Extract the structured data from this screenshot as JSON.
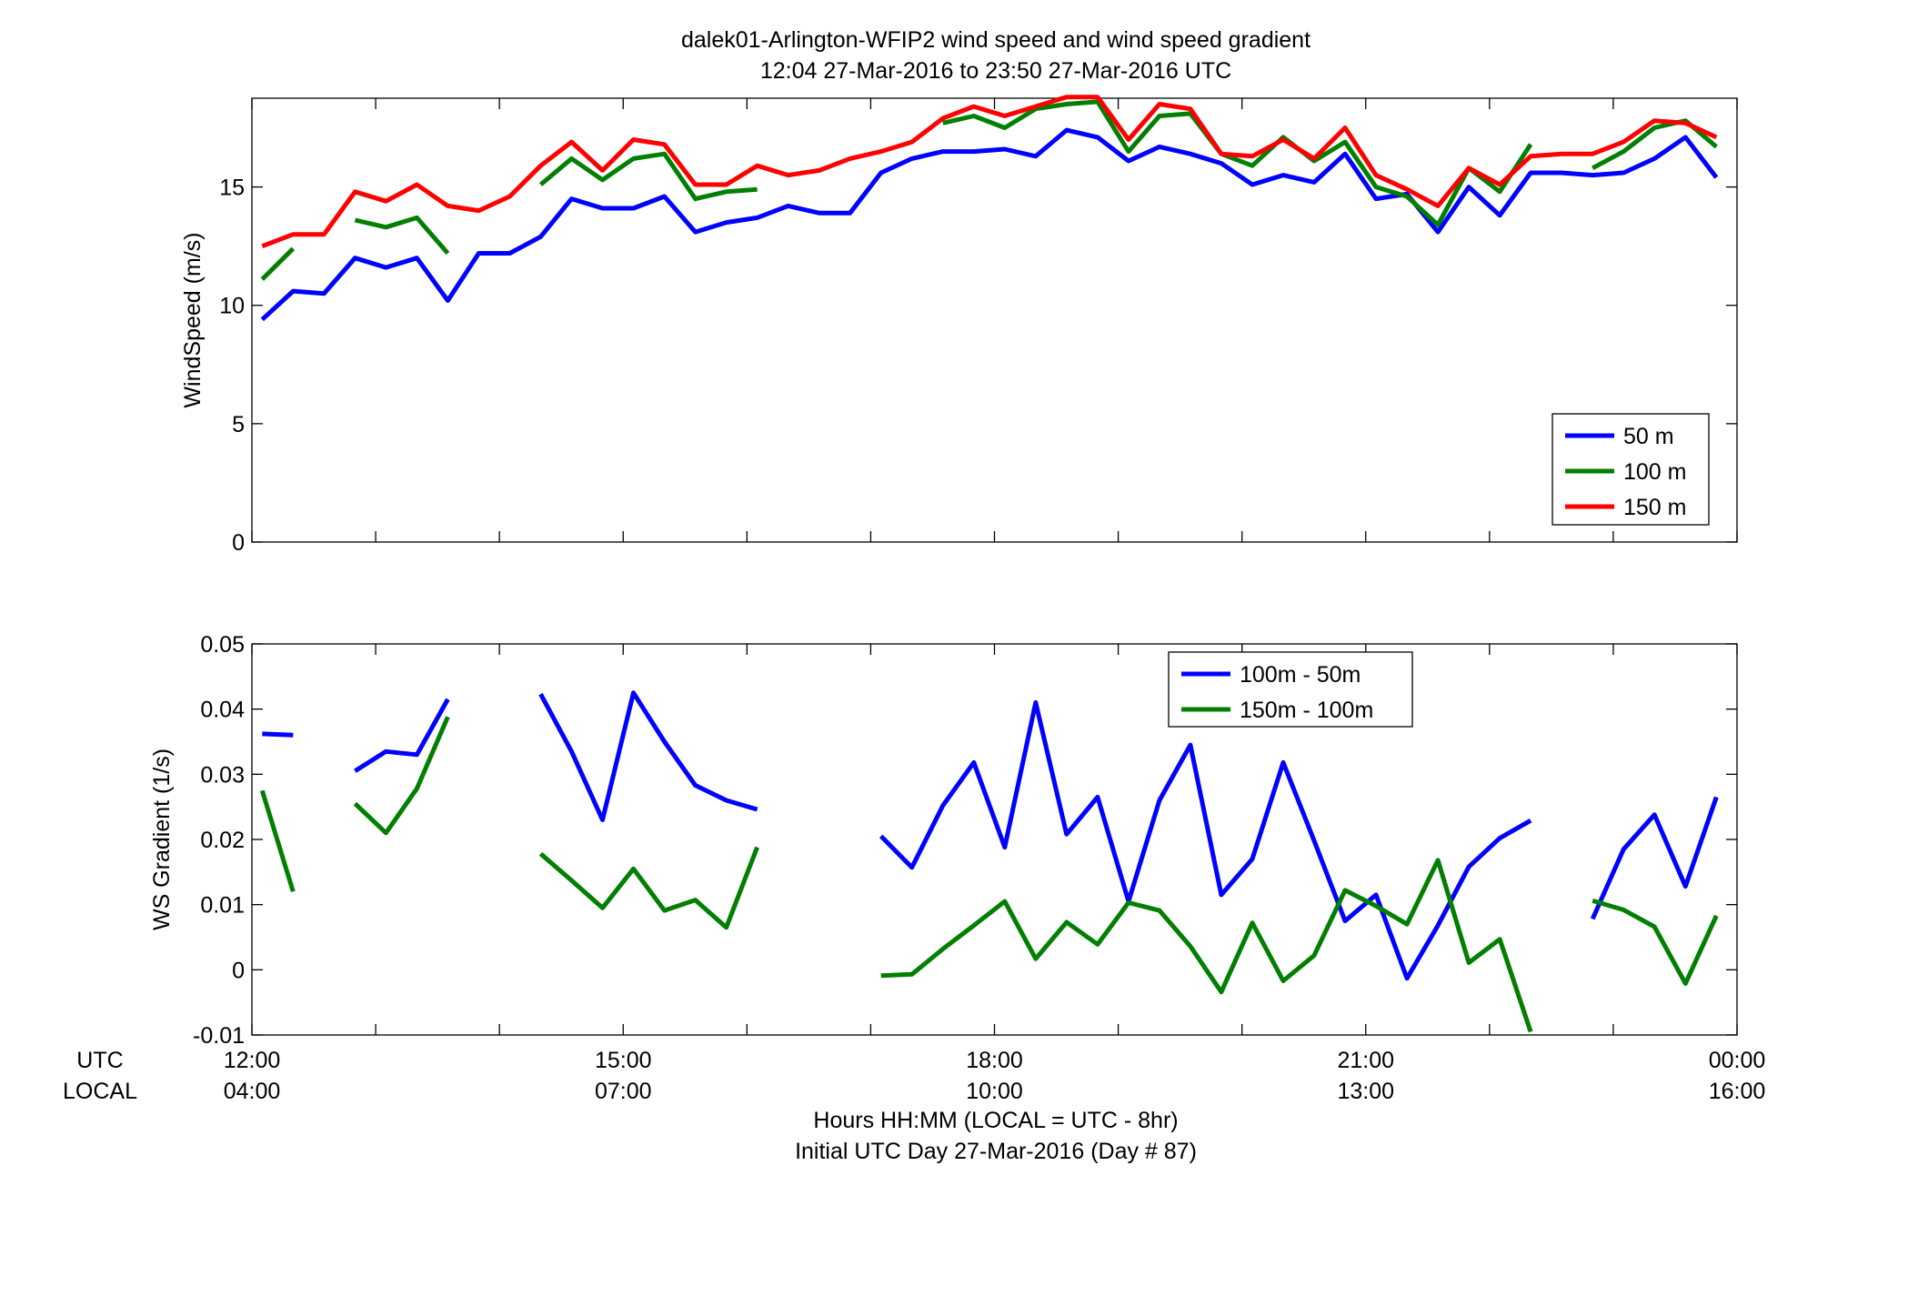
{
  "figure": {
    "title_line1": "dalek01-Arlington-WFIP2  wind speed and wind speed gradient",
    "title_line2": "12:04 27-Mar-2016 to 23:50 27-Mar-2016  UTC",
    "xlabel_line1": "Hours HH:MM  (LOCAL = UTC - 8hr)",
    "xlabel_line2": "Initial UTC Day 27-Mar-2016 (Day # 87)",
    "row_label_utc": "UTC",
    "row_label_local": "LOCAL"
  },
  "colors": {
    "blue": "#0000ff",
    "green": "#007f00",
    "red": "#ff0000"
  },
  "chart_data": [
    {
      "type": "line",
      "ylabel": "WindSpeed (m/s)",
      "xlim": [
        12.0,
        24.0
      ],
      "ylim": [
        0,
        18.75
      ],
      "yticks": [
        0,
        5,
        10,
        15
      ],
      "grid": false,
      "legend_position": "bottom-right",
      "x_utc_labels": [
        "12:00",
        "15:00",
        "18:00",
        "21:00",
        "00:00"
      ],
      "x_local_labels": [
        "04:00",
        "07:00",
        "10:00",
        "13:00",
        "16:00"
      ],
      "series": [
        {
          "name": "50 m",
          "color": "#0000ff",
          "x": [
            12.083,
            12.333,
            12.583,
            12.833,
            13.083,
            13.333,
            13.583,
            13.833,
            14.083,
            14.333,
            14.583,
            14.833,
            15.083,
            15.333,
            15.583,
            15.833,
            16.083,
            16.333,
            16.583,
            16.833,
            17.083,
            17.333,
            17.583,
            17.833,
            18.083,
            18.333,
            18.583,
            18.833,
            19.083,
            19.333,
            19.583,
            19.833,
            20.083,
            20.333,
            20.583,
            20.833,
            21.083,
            21.333,
            21.583,
            21.833,
            22.083,
            22.333,
            22.583,
            22.833,
            23.083,
            23.333,
            23.583,
            23.833
          ],
          "y": [
            9.4,
            10.6,
            10.5,
            12.0,
            11.6,
            12.0,
            10.2,
            12.2,
            12.2,
            12.9,
            14.5,
            14.1,
            14.1,
            14.6,
            13.1,
            13.5,
            13.7,
            14.2,
            13.9,
            13.9,
            15.6,
            16.2,
            16.5,
            16.5,
            16.6,
            16.3,
            17.4,
            17.1,
            16.1,
            16.7,
            16.4,
            16.0,
            15.1,
            15.5,
            15.2,
            16.4,
            14.5,
            14.7,
            13.1,
            15.0,
            13.8,
            15.6,
            15.6,
            15.5,
            15.6,
            16.2,
            17.1,
            15.4
          ]
        },
        {
          "name": "100 m",
          "color": "#007f00",
          "x": [
            12.083,
            12.333,
            12.583,
            12.833,
            13.083,
            13.333,
            13.583,
            13.833,
            14.083,
            14.333,
            14.583,
            14.833,
            15.083,
            15.333,
            15.583,
            15.833,
            16.083,
            16.333,
            16.583,
            16.833,
            17.083,
            17.333,
            17.583,
            17.833,
            18.083,
            18.333,
            18.583,
            18.833,
            19.083,
            19.333,
            19.583,
            19.833,
            20.083,
            20.333,
            20.583,
            20.833,
            21.083,
            21.333,
            21.583,
            21.833,
            22.083,
            22.333,
            22.583,
            22.833,
            23.083,
            23.333,
            23.583,
            23.833
          ],
          "y": [
            11.1,
            12.4,
            null,
            13.6,
            13.3,
            13.7,
            12.2,
            null,
            null,
            15.1,
            16.2,
            15.3,
            16.2,
            16.4,
            14.5,
            14.8,
            14.9,
            null,
            null,
            null,
            null,
            null,
            17.7,
            18.0,
            17.5,
            18.3,
            18.5,
            18.6,
            16.5,
            18.0,
            18.1,
            16.4,
            15.9,
            17.1,
            16.1,
            16.9,
            15.0,
            14.6,
            13.4,
            15.8,
            14.8,
            16.8,
            null,
            15.8,
            16.5,
            17.5,
            17.8,
            16.7
          ]
        },
        {
          "name": "150 m",
          "color": "#ff0000",
          "x": [
            12.083,
            12.333,
            12.583,
            12.833,
            13.083,
            13.333,
            13.583,
            13.833,
            14.083,
            14.333,
            14.583,
            14.833,
            15.083,
            15.333,
            15.583,
            15.833,
            16.083,
            16.333,
            16.583,
            16.833,
            17.083,
            17.333,
            17.583,
            17.833,
            18.083,
            18.333,
            18.583,
            18.833,
            19.083,
            19.333,
            19.583,
            19.833,
            20.083,
            20.333,
            20.583,
            20.833,
            21.083,
            21.333,
            21.583,
            21.833,
            22.083,
            22.333,
            22.583,
            22.833,
            23.083,
            23.333,
            23.583,
            23.833
          ],
          "y": [
            12.5,
            13.0,
            13.0,
            14.8,
            14.4,
            15.1,
            14.2,
            14.0,
            14.6,
            15.9,
            16.9,
            15.7,
            17.0,
            16.8,
            15.1,
            15.1,
            15.9,
            15.5,
            15.7,
            16.2,
            16.5,
            16.9,
            17.9,
            18.4,
            18.0,
            18.4,
            18.8,
            18.8,
            17.0,
            18.5,
            18.3,
            16.4,
            16.3,
            17.0,
            16.2,
            17.5,
            15.5,
            14.9,
            14.2,
            15.8,
            15.1,
            16.3,
            16.4,
            16.4,
            16.9,
            17.8,
            17.7,
            17.1
          ]
        }
      ]
    },
    {
      "type": "line",
      "ylabel": "WS Gradient (1/s)",
      "xlim": [
        12.0,
        24.0
      ],
      "ylim": [
        -0.01,
        0.05
      ],
      "yticks": [
        -0.01,
        0,
        0.01,
        0.02,
        0.03,
        0.04,
        0.05
      ],
      "ytick_labels": [
        "-0.01",
        "0",
        "0.01",
        "0.02",
        "0.03",
        "0.04",
        "0.05"
      ],
      "grid": false,
      "legend_position": "top-center",
      "x_utc_labels": [
        "12:00",
        "15:00",
        "18:00",
        "21:00",
        "00:00"
      ],
      "x_local_labels": [
        "04:00",
        "07:00",
        "10:00",
        "13:00",
        "16:00"
      ],
      "series": [
        {
          "name": "100m - 50m",
          "color": "#0000ff",
          "x": [
            12.083,
            12.333,
            12.583,
            12.833,
            13.083,
            13.333,
            13.583,
            13.833,
            14.083,
            14.333,
            14.583,
            14.833,
            15.083,
            15.333,
            15.583,
            15.833,
            16.083,
            16.333,
            16.583,
            16.833,
            17.083,
            17.333,
            17.583,
            17.833,
            18.083,
            18.333,
            18.583,
            18.833,
            19.083,
            19.333,
            19.583,
            19.833,
            20.083,
            20.333,
            20.583,
            20.833,
            21.083,
            21.333,
            21.583,
            21.833,
            22.083,
            22.333,
            22.583,
            22.833,
            23.083,
            23.333,
            23.583,
            23.833
          ],
          "y": [
            0.0362,
            0.036,
            null,
            0.0305,
            0.0335,
            0.033,
            0.0415,
            null,
            null,
            0.0423,
            0.0335,
            0.023,
            0.0425,
            0.035,
            0.0283,
            0.026,
            0.0246,
            null,
            null,
            null,
            0.0205,
            0.0157,
            0.0252,
            0.0318,
            0.0188,
            0.041,
            0.0208,
            0.0265,
            0.0105,
            0.026,
            0.0345,
            0.0115,
            0.017,
            0.0318,
            0.0198,
            0.0075,
            0.0115,
            -0.0013,
            0.0068,
            0.0158,
            0.0202,
            0.0229,
            null,
            0.0078,
            0.0185,
            0.0238,
            0.0128,
            0.0265
          ]
        },
        {
          "name": "150m - 100m",
          "color": "#007f00",
          "x": [
            12.083,
            12.333,
            12.583,
            12.833,
            13.083,
            13.333,
            13.583,
            13.833,
            14.083,
            14.333,
            14.583,
            14.833,
            15.083,
            15.333,
            15.583,
            15.833,
            16.083,
            16.333,
            16.583,
            16.833,
            17.083,
            17.333,
            17.583,
            17.833,
            18.083,
            18.333,
            18.583,
            18.833,
            19.083,
            19.333,
            19.583,
            19.833,
            20.083,
            20.333,
            20.583,
            20.833,
            21.083,
            21.333,
            21.583,
            21.833,
            22.083,
            22.333,
            22.583,
            22.833,
            23.083,
            23.333,
            23.583,
            23.833
          ],
          "y": [
            0.0275,
            0.012,
            null,
            0.0255,
            0.021,
            0.0278,
            0.0388,
            null,
            null,
            0.0178,
            0.0137,
            0.0095,
            0.0155,
            0.0091,
            0.0107,
            0.0065,
            0.0188,
            null,
            null,
            null,
            -0.0009,
            -0.0007,
            0.0032,
            0.0068,
            0.0105,
            0.0017,
            0.0073,
            0.0039,
            0.0103,
            0.0091,
            0.0036,
            -0.0034,
            0.0072,
            -0.0017,
            0.0022,
            0.0122,
            0.0098,
            0.007,
            0.0168,
            0.0011,
            0.0047,
            -0.0095,
            null,
            0.0106,
            0.0092,
            0.0066,
            -0.0021,
            0.0083
          ]
        }
      ]
    }
  ]
}
